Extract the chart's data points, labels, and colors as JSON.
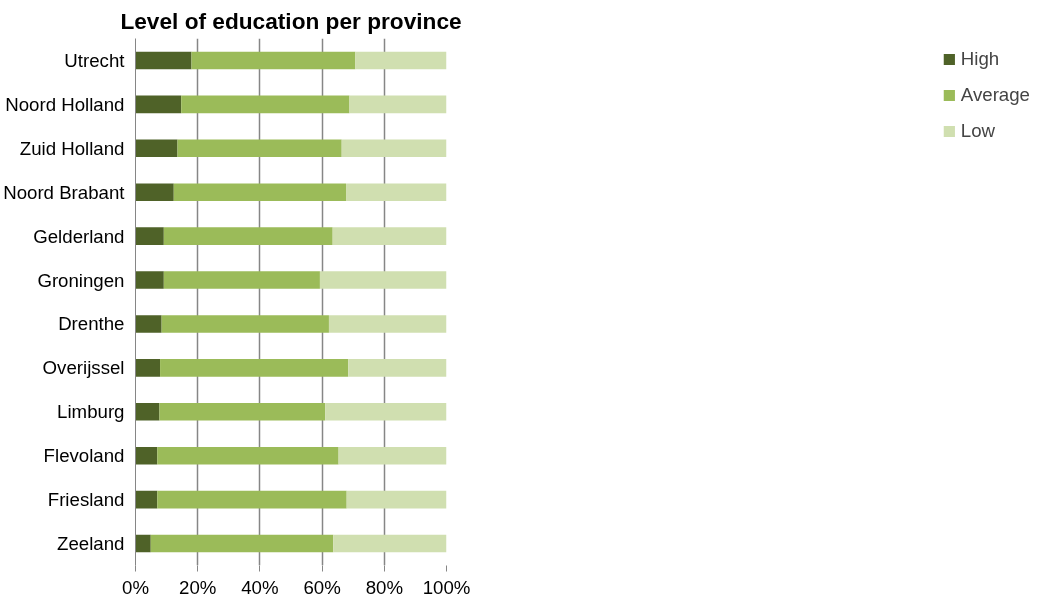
{
  "chart_data": {
    "type": "bar",
    "title": "Level of education per province",
    "orientation": "horizontal",
    "stacked": true,
    "categories": [
      "Utrecht",
      "Noord Holland",
      "Zuid Holland",
      "Noord Brabant",
      "Gelderland",
      "Groningen",
      "Drenthe",
      "Overijssel",
      "Limburg",
      "Flevoland",
      "Friesland",
      "Zeeland"
    ],
    "series": [
      {
        "name": "High",
        "color": "#4f6228",
        "values": [
          18.0,
          14.7,
          13.5,
          12.3,
          9.1,
          9.1,
          8.4,
          7.9,
          7.7,
          7.0,
          7.0,
          4.9
        ]
      },
      {
        "name": "Average",
        "color": "#9bbb59",
        "values": [
          52.7,
          54.1,
          52.8,
          55.4,
          54.3,
          50.2,
          53.8,
          60.5,
          53.3,
          58.3,
          60.9,
          58.7
        ]
      },
      {
        "name": "Low",
        "color": "#d0dfb0",
        "values": [
          29.3,
          31.2,
          33.7,
          32.3,
          36.6,
          40.7,
          37.8,
          31.6,
          39.0,
          34.7,
          32.1,
          36.4
        ]
      }
    ],
    "xlim": [
      0,
      100
    ],
    "xticks": [
      {
        "value": 0,
        "label": "0%"
      },
      {
        "value": 20,
        "label": "20%"
      },
      {
        "value": 40,
        "label": "40%"
      },
      {
        "value": 60,
        "label": "60%"
      },
      {
        "value": 80,
        "label": "80%"
      },
      {
        "value": 100,
        "label": "100%"
      }
    ],
    "grid": "x",
    "legend": "right"
  }
}
